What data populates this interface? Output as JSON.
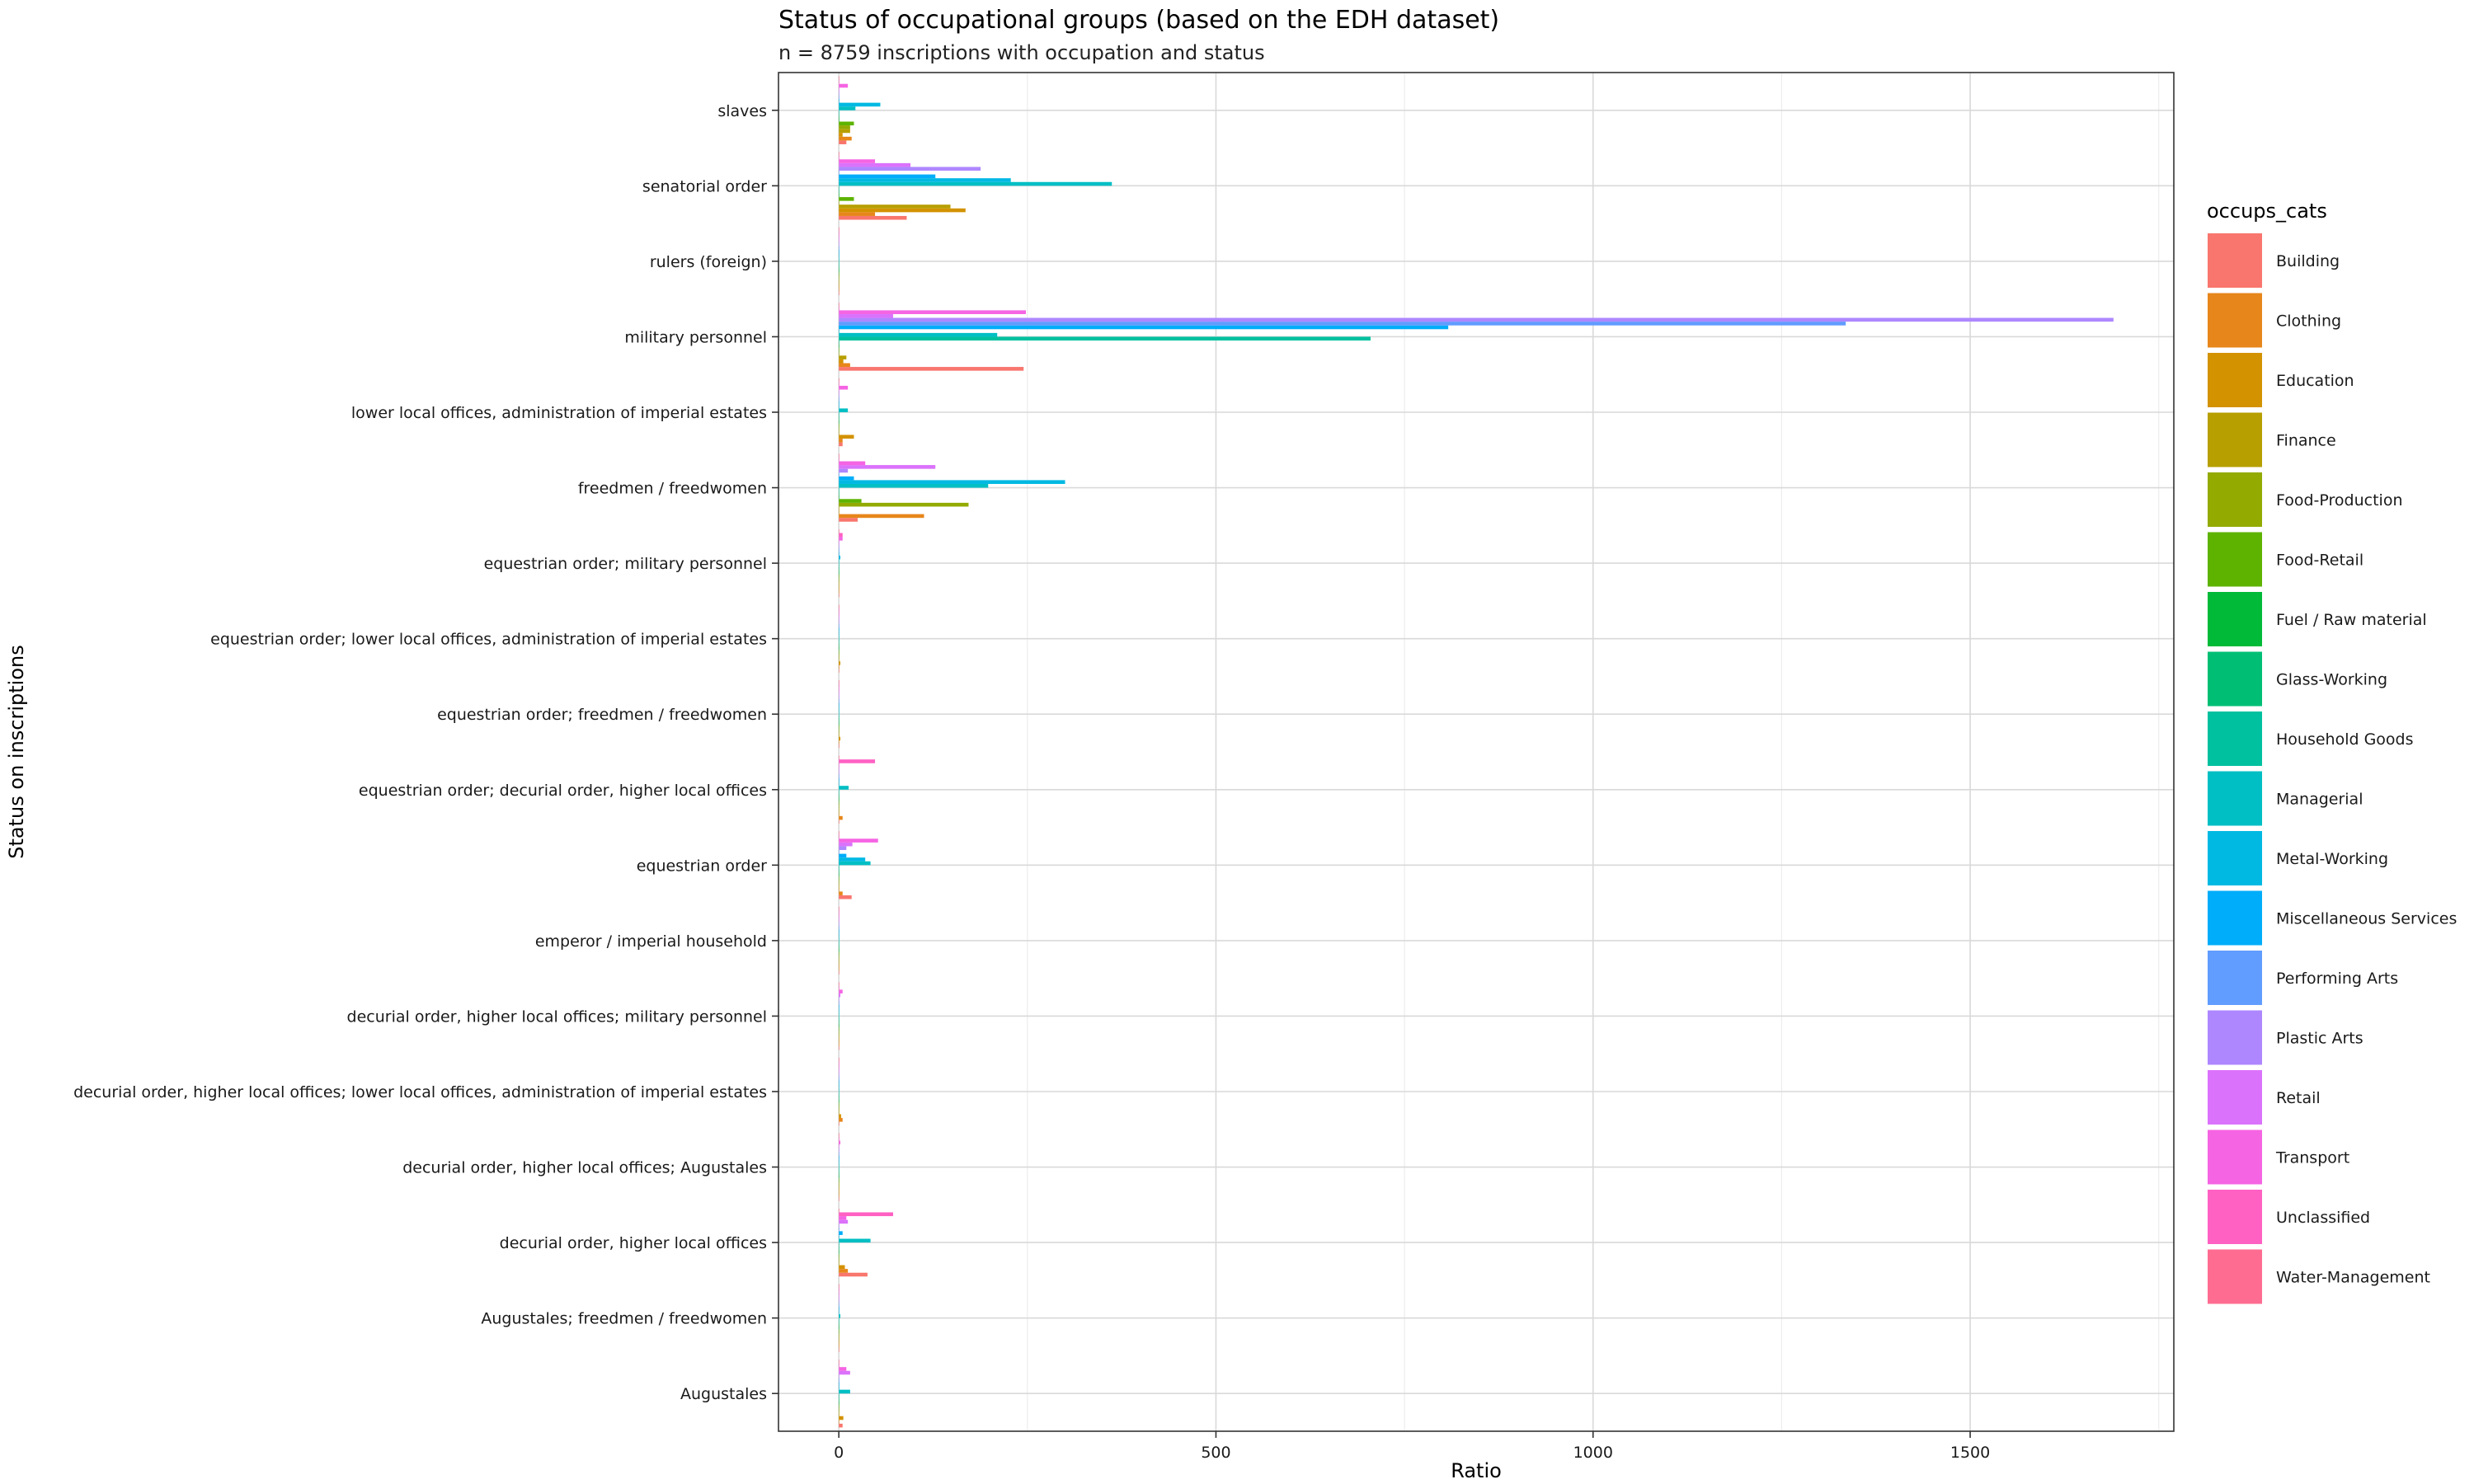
{
  "chart_data": {
    "type": "bar",
    "orientation": "horizontal",
    "title": "Status of occupational groups (based on the EDH dataset)",
    "subtitle": "n = 8759 inscriptions with occupation and status",
    "xlabel": "Ratio",
    "ylabel": "Status on inscriptions",
    "xlim": [
      -80,
      1770
    ],
    "xticks": [
      0,
      500,
      1000,
      1500
    ],
    "grid": true,
    "legend_title": "occups_cats",
    "legend_position": "right",
    "categories": [
      "slaves",
      "senatorial order",
      "rulers (foreign)",
      "military personnel",
      "lower local offices, administration of imperial estates",
      "freedmen / freedwomen",
      "equestrian order; military personnel",
      "equestrian order; lower local offices, administration of imperial estates",
      "equestrian order; freedmen / freedwomen",
      "equestrian order; decurial order, higher local offices",
      "equestrian order",
      "emperor / imperial household",
      "decurial order, higher local offices; military personnel",
      "decurial order, higher local offices; lower local offices, administration of imperial estates",
      "decurial order, higher local offices; Augustales",
      "decurial order, higher local offices",
      "Augustales; freedmen / freedwomen",
      "Augustales"
    ],
    "series": [
      {
        "name": "Building",
        "color": "#F8766D",
        "values": [
          10,
          90,
          0,
          245,
          5,
          25,
          0,
          0,
          0,
          0,
          17,
          0,
          0,
          0,
          0,
          38,
          0,
          5
        ]
      },
      {
        "name": "Clothing",
        "color": "#E7861B",
        "values": [
          17,
          48,
          0,
          15,
          5,
          113,
          0,
          0,
          0,
          5,
          5,
          0,
          0,
          5,
          0,
          12,
          0,
          0
        ]
      },
      {
        "name": "Education",
        "color": "#D39200",
        "values": [
          5,
          168,
          0,
          6,
          20,
          0,
          0,
          2,
          2,
          0,
          0,
          0,
          0,
          3,
          0,
          8,
          0,
          6
        ]
      },
      {
        "name": "Finance",
        "color": "#B79F00",
        "values": [
          15,
          148,
          0,
          10,
          0,
          0,
          0,
          0,
          0,
          0,
          0,
          0,
          0,
          0,
          0,
          0,
          0,
          0
        ]
      },
      {
        "name": "Food-Production",
        "color": "#93AA00",
        "values": [
          15,
          0,
          0,
          0,
          0,
          172,
          0,
          0,
          0,
          0,
          0,
          0,
          0,
          0,
          0,
          0,
          0,
          0
        ]
      },
      {
        "name": "Food-Retail",
        "color": "#5EB300",
        "values": [
          20,
          20,
          0,
          0,
          0,
          30,
          0,
          0,
          0,
          0,
          0,
          0,
          0,
          0,
          0,
          0,
          0,
          0
        ]
      },
      {
        "name": "Fuel / Raw material",
        "color": "#00BA38",
        "values": [
          0,
          0,
          0,
          0,
          0,
          0,
          0,
          0,
          0,
          0,
          0,
          0,
          0,
          0,
          0,
          0,
          0,
          0
        ]
      },
      {
        "name": "Glass-Working",
        "color": "#00BF74",
        "values": [
          0,
          0,
          0,
          0,
          0,
          0,
          0,
          0,
          0,
          0,
          0,
          0,
          0,
          0,
          0,
          0,
          0,
          0
        ]
      },
      {
        "name": "Household Goods",
        "color": "#00C19F",
        "values": [
          0,
          0,
          0,
          705,
          0,
          0,
          0,
          0,
          0,
          0,
          0,
          0,
          0,
          0,
          0,
          0,
          0,
          0
        ]
      },
      {
        "name": "Managerial",
        "color": "#00BFC4",
        "values": [
          22,
          362,
          0,
          210,
          12,
          198,
          0,
          0,
          0,
          13,
          42,
          0,
          0,
          0,
          0,
          42,
          2,
          15
        ]
      },
      {
        "name": "Metal-Working",
        "color": "#00B9E3",
        "values": [
          55,
          228,
          0,
          0,
          0,
          300,
          2,
          0,
          0,
          0,
          35,
          0,
          0,
          0,
          0,
          0,
          0,
          0
        ]
      },
      {
        "name": "Miscellaneous Services",
        "color": "#00ADFA",
        "values": [
          0,
          128,
          0,
          808,
          0,
          20,
          0,
          0,
          0,
          0,
          10,
          0,
          0,
          0,
          0,
          5,
          0,
          0
        ]
      },
      {
        "name": "Performing Arts",
        "color": "#619CFF",
        "values": [
          0,
          0,
          0,
          1335,
          0,
          0,
          0,
          0,
          0,
          0,
          0,
          0,
          0,
          0,
          0,
          0,
          0,
          0
        ]
      },
      {
        "name": "Plastic Arts",
        "color": "#AE87FF",
        "values": [
          0,
          188,
          0,
          1690,
          0,
          12,
          0,
          0,
          0,
          0,
          10,
          0,
          0,
          0,
          0,
          0,
          0,
          0
        ]
      },
      {
        "name": "Retail",
        "color": "#DB72FB",
        "values": [
          0,
          95,
          0,
          72,
          0,
          128,
          0,
          0,
          0,
          0,
          18,
          0,
          2,
          0,
          0,
          12,
          0,
          15
        ]
      },
      {
        "name": "Transport",
        "color": "#F564E3",
        "values": [
          12,
          48,
          0,
          248,
          12,
          35,
          5,
          0,
          0,
          0,
          52,
          0,
          5,
          0,
          2,
          10,
          0,
          10
        ]
      },
      {
        "name": "Unclassified",
        "color": "#FF61C3",
        "values": [
          0,
          0,
          0,
          0,
          0,
          0,
          5,
          0,
          0,
          48,
          0,
          0,
          0,
          0,
          0,
          72,
          0,
          0
        ]
      },
      {
        "name": "Water-Management",
        "color": "#FF6C91",
        "values": [
          0,
          0,
          0,
          0,
          0,
          0,
          0,
          0,
          0,
          0,
          0,
          0,
          0,
          0,
          0,
          0,
          0,
          0
        ]
      }
    ]
  }
}
